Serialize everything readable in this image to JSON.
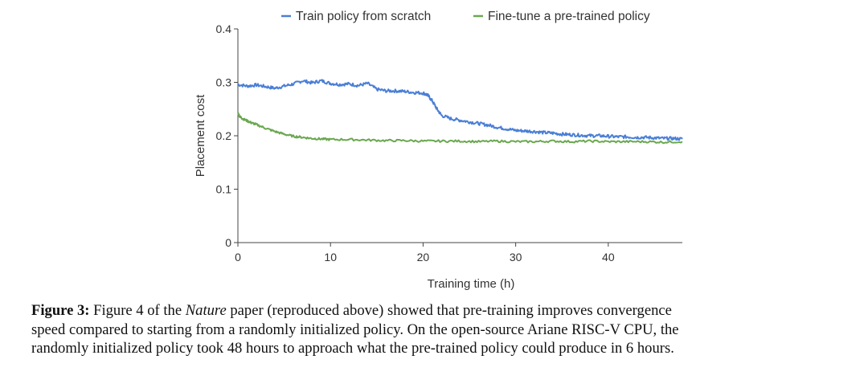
{
  "chart_data": {
    "type": "line",
    "title": "",
    "xlabel": "Training time (h)",
    "ylabel": "Placement cost",
    "xlim": [
      0,
      48
    ],
    "ylim": [
      0,
      0.4
    ],
    "xticks": [
      0,
      10,
      20,
      30,
      40
    ],
    "yticks": [
      0,
      0.1,
      0.2,
      0.3,
      0.4
    ],
    "xtick_labels": [
      "0",
      "10",
      "20",
      "30",
      "40"
    ],
    "ytick_labels": [
      "0",
      "0.1",
      "0.2",
      "0.3",
      "0.4"
    ],
    "legend_position": "top",
    "series": [
      {
        "name": "Train policy from scratch",
        "color": "#4a7fd6",
        "x": [
          0,
          1,
          2,
          3,
          4,
          5,
          6,
          7,
          8,
          9,
          10,
          11,
          12,
          13,
          14,
          15,
          16,
          17,
          18,
          19,
          20,
          20.5,
          21,
          21.5,
          22,
          23,
          24,
          25,
          26,
          27,
          28,
          29,
          30,
          31,
          32,
          33,
          34,
          35,
          36,
          37,
          38,
          39,
          40,
          41,
          42,
          43,
          44,
          45,
          46,
          47,
          48
        ],
        "y": [
          0.296,
          0.293,
          0.295,
          0.292,
          0.289,
          0.293,
          0.297,
          0.303,
          0.299,
          0.303,
          0.298,
          0.296,
          0.297,
          0.294,
          0.298,
          0.287,
          0.284,
          0.284,
          0.283,
          0.281,
          0.28,
          0.276,
          0.265,
          0.25,
          0.238,
          0.232,
          0.229,
          0.226,
          0.223,
          0.22,
          0.216,
          0.213,
          0.21,
          0.209,
          0.208,
          0.206,
          0.205,
          0.203,
          0.202,
          0.201,
          0.2,
          0.2,
          0.199,
          0.198,
          0.198,
          0.197,
          0.197,
          0.196,
          0.195,
          0.195,
          0.194
        ]
      },
      {
        "name": "Fine-tune a pre-trained policy",
        "color": "#6aa84f",
        "x": [
          0,
          0.2,
          0.5,
          1,
          1.5,
          2,
          3,
          4,
          5,
          6,
          7,
          8,
          9,
          10,
          12,
          14,
          16,
          18,
          20,
          22,
          24,
          26,
          28,
          30,
          32,
          34,
          36,
          38,
          40,
          42,
          44,
          46,
          48
        ],
        "y": [
          0.243,
          0.236,
          0.232,
          0.228,
          0.224,
          0.221,
          0.214,
          0.208,
          0.203,
          0.199,
          0.197,
          0.195,
          0.194,
          0.193,
          0.193,
          0.192,
          0.191,
          0.191,
          0.19,
          0.19,
          0.19,
          0.189,
          0.19,
          0.189,
          0.189,
          0.19,
          0.189,
          0.19,
          0.189,
          0.189,
          0.189,
          0.188,
          0.189
        ]
      }
    ]
  },
  "caption": {
    "label": "Figure 3:",
    "text_before_italic": " Figure 4 of the ",
    "italic": "Nature",
    "text_line1_rest": " paper (reproduced above) showed that pre-training improves convergence",
    "line2": "speed compared to starting from a randomly initialized policy. On the open-source Ariane RISC-V CPU, the",
    "line3": "randomly initialized policy took 48 hours to approach what the pre-trained policy could produce in 6 hours."
  }
}
